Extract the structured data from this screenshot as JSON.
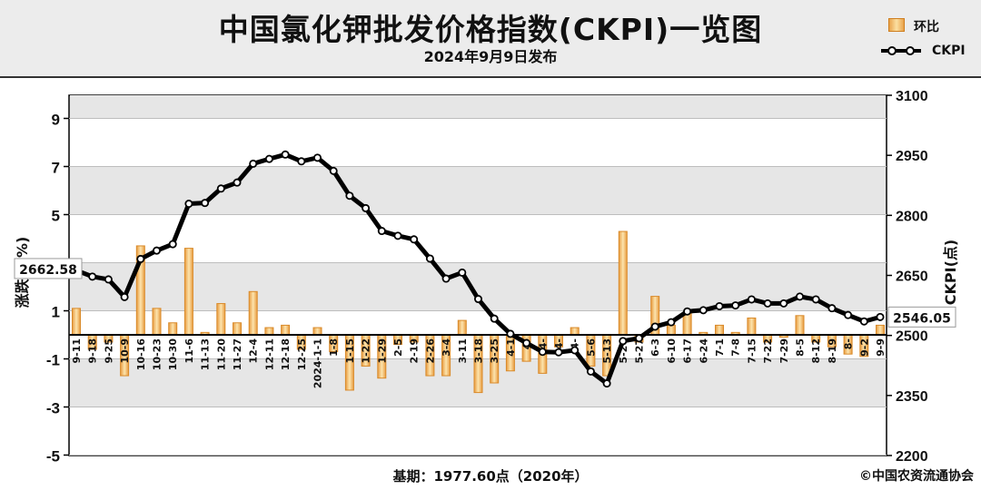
{
  "header": {
    "title": "中国氯化钾批发价格指数(CKPI)一览图",
    "subtitle": "2024年9月9日发布"
  },
  "legend": {
    "bar_label": "环比",
    "line_label": "CKPI"
  },
  "footer": {
    "base_period": "基期：1977.60点（2020年）",
    "copyright": "©中国农资流通协会"
  },
  "colors": {
    "bar_fill": "#f6c774",
    "bar_stroke": "#d98a2a",
    "line": "#000000",
    "header_bg": "#ececec",
    "band": "#e6e6e6"
  },
  "chart_data": {
    "type": "bar+line",
    "title": "中国氯化钾批发价格指数(CKPI)一览图",
    "y_left": {
      "label": "涨跌幅(%)",
      "range": [
        -5,
        10
      ],
      "ticks": [
        9,
        7,
        5,
        3,
        1,
        -1,
        -3,
        -5
      ],
      "tick_labels": [
        "9",
        "7",
        "5",
        "3",
        "1",
        "-1",
        "-3",
        "-5"
      ]
    },
    "y_right": {
      "label": "CKPI(点)",
      "range": [
        2200,
        3100
      ],
      "ticks": [
        3100,
        2950,
        2800,
        2650,
        2500,
        2350,
        2200
      ],
      "tick_labels": [
        "3100",
        "2950",
        "2800",
        "2650",
        "2500",
        "2350",
        "2200"
      ]
    },
    "categories": [
      "9-11",
      "9-18",
      "9-25",
      "10-9",
      "10-16",
      "10-23",
      "10-30",
      "11-6",
      "11-13",
      "11-20",
      "11-27",
      "12-4",
      "12-11",
      "12-18",
      "12-25",
      "2024-1-1",
      "1-8",
      "1-15",
      "1-22",
      "1-29",
      "2-5",
      "2-19",
      "2-26",
      "3-4",
      "3-11",
      "3-18",
      "3-25",
      "4-1",
      "4-8",
      "4-15",
      "4-22",
      "4-29",
      "5-6",
      "5-13",
      "5-20",
      "5-27",
      "6-3",
      "6-10",
      "6-17",
      "6-24",
      "7-1",
      "7-8",
      "7-15",
      "7-22",
      "7-29",
      "8-5",
      "8-12",
      "8-19",
      "8-26",
      "9-2",
      "9-9"
    ],
    "visible_category_labels": [
      "9-11",
      "9-18",
      "9-25",
      "10-9",
      "10-16",
      "10-23",
      "10-30",
      "11-6",
      "11-13",
      "11-20",
      "11-27",
      "12-4",
      "12-11",
      "12-18",
      "12-25",
      "2024-1-1",
      "1-8",
      "1-15",
      "1-22",
      "1-29",
      "2-5",
      "2-19",
      "2-26",
      "3-4",
      "3-11",
      "3-18",
      "3-25",
      "4-1",
      "4-",
      "4-",
      "4-",
      "4-",
      "5-6",
      "5-13",
      "5-20",
      "5-27",
      "6-3",
      "6-10",
      "6-17",
      "6-24",
      "7-1",
      "7-8",
      "7-15",
      "7-22",
      "7-29",
      "8-5",
      "8-12",
      "8-19",
      "8-",
      "9-2",
      "9-9"
    ],
    "series": [
      {
        "name": "环比",
        "type": "bar",
        "axis": "left",
        "values": [
          1.1,
          -0.6,
          -0.3,
          -1.7,
          3.7,
          1.1,
          0.5,
          3.6,
          0.1,
          1.3,
          0.5,
          1.8,
          0.3,
          0.4,
          -0.6,
          0.3,
          -0.7,
          -2.3,
          -1.3,
          -1.8,
          -0.4,
          -0.3,
          -1.7,
          -1.7,
          0.6,
          -2.4,
          -2.0,
          -1.5,
          -1.1,
          -1.6,
          -0.5,
          0.3,
          -1.3,
          -1.7,
          4.3,
          -0.3,
          1.6,
          0.4,
          0.9,
          0.1,
          0.4,
          0.1,
          0.7,
          -0.3,
          -0.1,
          0.8,
          -0.3,
          -0.5,
          -0.8,
          -0.9,
          0.4
        ]
      },
      {
        "name": "CKPI",
        "type": "line",
        "axis": "right",
        "values": [
          2662.58,
          2647,
          2640,
          2596,
          2691,
          2712,
          2728,
          2829,
          2831,
          2867,
          2882,
          2929,
          2941,
          2952,
          2935,
          2944,
          2911,
          2849,
          2818,
          2761,
          2749,
          2740,
          2692,
          2642,
          2657,
          2591,
          2542,
          2504,
          2481,
          2459,
          2458,
          2463,
          2410,
          2380,
          2486,
          2493,
          2522,
          2533,
          2560,
          2563,
          2573,
          2575,
          2590,
          2580,
          2580,
          2597,
          2590,
          2568,
          2551,
          2535,
          2546.05
        ]
      }
    ],
    "annotations": [
      {
        "target": "first_line_point",
        "text": "2662.58"
      },
      {
        "target": "last_line_point",
        "text": "2546.05"
      }
    ]
  }
}
